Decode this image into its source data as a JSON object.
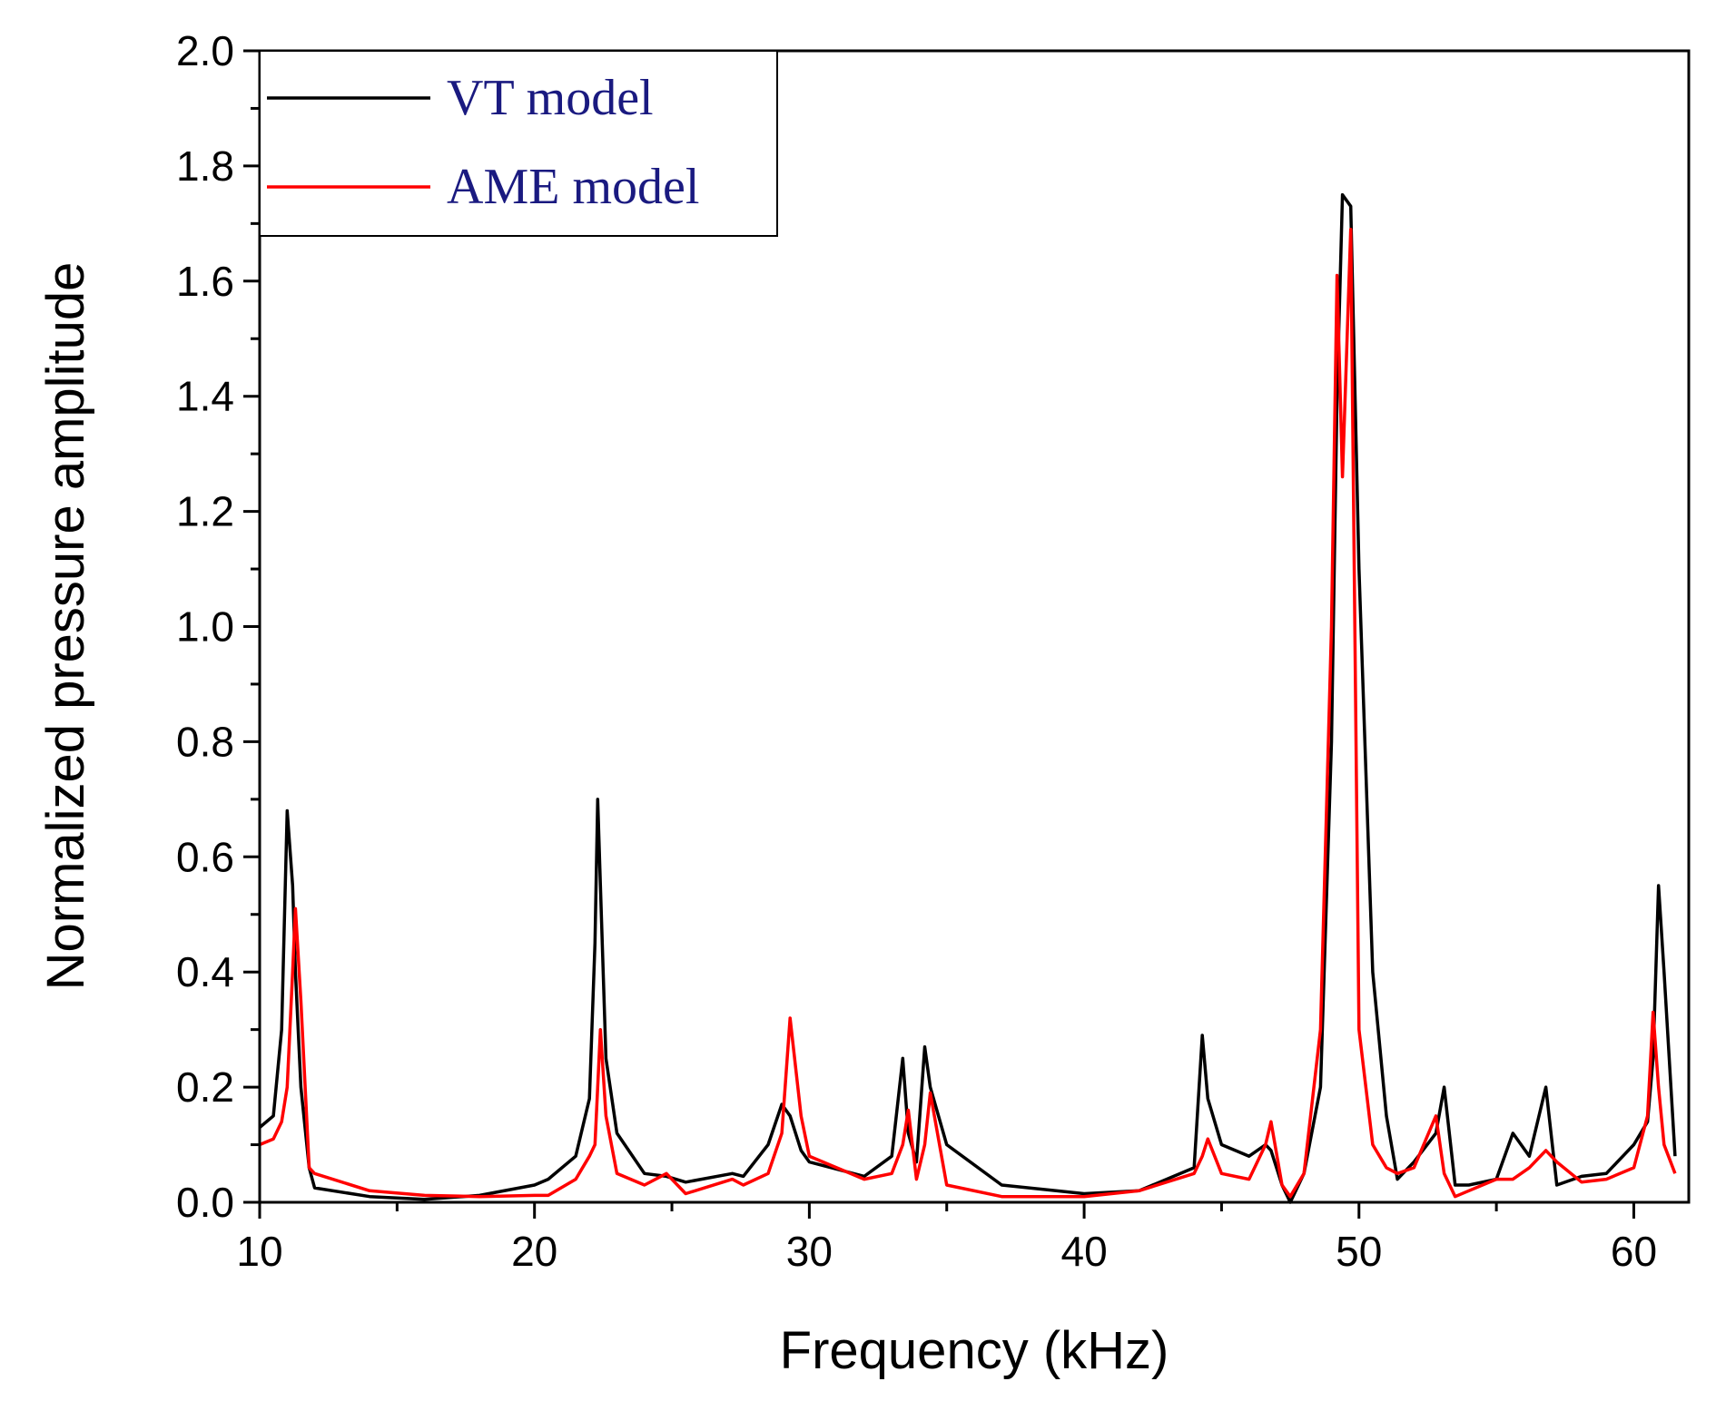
{
  "chart_data": {
    "type": "line",
    "x_label": "Frequency (kHz)",
    "y_label": "Normalized pressure amplitude",
    "xlim": [
      10,
      62
    ],
    "ylim": [
      0,
      2
    ],
    "xticks": [
      10,
      20,
      30,
      40,
      50,
      60
    ],
    "yticks": [
      {
        "value": 0,
        "label": "0.0"
      },
      {
        "value": 0.2,
        "label": "0.2"
      },
      {
        "value": 0.4,
        "label": "0.4"
      },
      {
        "value": 0.6,
        "label": "0.6"
      },
      {
        "value": 0.8,
        "label": "0.8"
      },
      {
        "value": 1,
        "label": "1.0"
      },
      {
        "value": 1.2,
        "label": "1.2"
      },
      {
        "value": 1.4,
        "label": "1.4"
      },
      {
        "value": 1.6,
        "label": "1.6"
      },
      {
        "value": 1.8,
        "label": "1.8"
      },
      {
        "value": 2,
        "label": "2.0"
      }
    ],
    "legend": "upper left",
    "x": [
      10.0,
      10.5,
      10.8,
      11.0,
      11.2,
      11.3,
      11.5,
      11.8,
      12.0,
      14,
      16,
      18,
      20,
      20.5,
      21.5,
      22.0,
      22.2,
      22.3,
      22.4,
      22.6,
      23,
      24,
      24.8,
      25.5,
      27.2,
      27.6,
      28.5,
      29.0,
      29.3,
      29.7,
      30,
      32,
      33,
      33.4,
      33.6,
      33.9,
      34.2,
      34.4,
      35,
      37,
      40,
      42,
      44,
      44.3,
      44.5,
      45,
      46,
      46.6,
      46.8,
      47.2,
      47.5,
      48,
      48.6,
      49,
      49.2,
      49.4,
      49.7,
      50,
      50.5,
      51,
      51.4,
      52,
      52.8,
      53.1,
      53.5,
      54,
      55,
      55.6,
      56.2,
      56.8,
      57.2,
      58.1,
      59,
      60,
      60.5,
      60.7,
      60.9,
      61.1,
      61.5
    ],
    "series": [
      {
        "name": "VT model",
        "color": "#000000",
        "values": [
          0.13,
          0.15,
          0.3,
          0.68,
          0.55,
          0.4,
          0.2,
          0.06,
          0.025,
          0.01,
          0.005,
          0.012,
          0.03,
          0.04,
          0.08,
          0.18,
          0.45,
          0.7,
          0.55,
          0.25,
          0.12,
          0.05,
          0.045,
          0.035,
          0.05,
          0.045,
          0.1,
          0.17,
          0.15,
          0.09,
          0.07,
          0.045,
          0.08,
          0.25,
          0.12,
          0.07,
          0.27,
          0.2,
          0.1,
          0.03,
          0.015,
          0.02,
          0.06,
          0.29,
          0.18,
          0.1,
          0.08,
          0.1,
          0.09,
          0.03,
          0.0,
          0.05,
          0.2,
          0.8,
          1.4,
          1.75,
          1.73,
          1.1,
          0.4,
          0.15,
          0.04,
          0.07,
          0.12,
          0.2,
          0.03,
          0.03,
          0.04,
          0.12,
          0.08,
          0.2,
          0.03,
          0.045,
          0.05,
          0.1,
          0.14,
          0.25,
          0.55,
          0.4,
          0.08
        ]
      },
      {
        "name": "AME model",
        "color": "#ff0000",
        "values": [
          0.1,
          0.11,
          0.14,
          0.2,
          0.4,
          0.51,
          0.35,
          0.06,
          0.05,
          0.02,
          0.012,
          0.01,
          0.012,
          0.012,
          0.04,
          0.08,
          0.1,
          0.2,
          0.3,
          0.15,
          0.05,
          0.03,
          0.05,
          0.015,
          0.04,
          0.03,
          0.05,
          0.12,
          0.32,
          0.15,
          0.08,
          0.04,
          0.05,
          0.1,
          0.16,
          0.04,
          0.1,
          0.19,
          0.03,
          0.01,
          0.01,
          0.02,
          0.05,
          0.08,
          0.11,
          0.05,
          0.04,
          0.1,
          0.14,
          0.03,
          0.01,
          0.05,
          0.3,
          1.0,
          1.61,
          1.26,
          1.69,
          0.3,
          0.1,
          0.06,
          0.05,
          0.06,
          0.15,
          0.05,
          0.01,
          0.02,
          0.04,
          0.04,
          0.06,
          0.09,
          0.07,
          0.035,
          0.04,
          0.06,
          0.15,
          0.33,
          0.2,
          0.1,
          0.05
        ]
      }
    ]
  }
}
